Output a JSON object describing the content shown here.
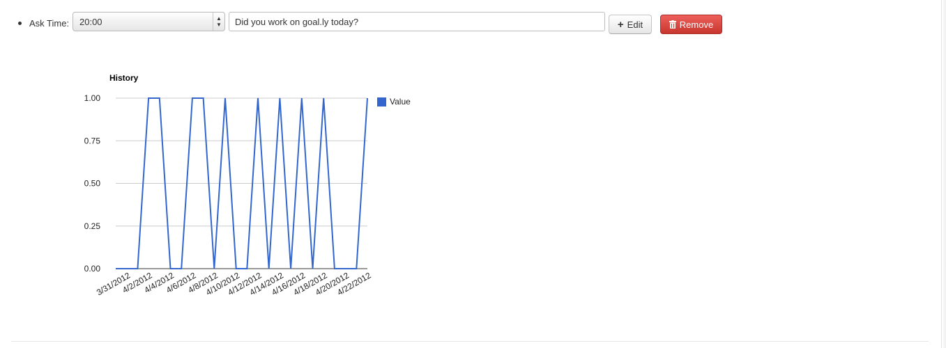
{
  "question_row": {
    "label": "Ask Time:",
    "ask_time": "20:00",
    "question_text": "Did you work on goal.ly today?",
    "edit_label": "Edit",
    "remove_label": "Remove"
  },
  "colors": {
    "series": "#3366cc",
    "remove_button": "#d9534f",
    "grid": "#cccccc"
  },
  "chart_data": {
    "type": "line",
    "title": "History",
    "legend": {
      "position": "right",
      "entries": [
        "Value"
      ]
    },
    "ylim": [
      0,
      1
    ],
    "y_ticks": [
      "0.00",
      "0.25",
      "0.50",
      "0.75",
      "1.00"
    ],
    "x_tick_labels": [
      "3/31/2012",
      "4/2/2012",
      "4/4/2012",
      "4/6/2012",
      "4/8/2012",
      "4/10/2012",
      "4/12/2012",
      "4/14/2012",
      "4/16/2012",
      "4/18/2012",
      "4/20/2012",
      "4/22/2012"
    ],
    "grid": true,
    "series": [
      {
        "name": "Value",
        "x": [
          "3/30/2012",
          "3/31/2012",
          "4/1/2012",
          "4/2/2012",
          "4/3/2012",
          "4/4/2012",
          "4/5/2012",
          "4/6/2012",
          "4/7/2012",
          "4/8/2012",
          "4/9/2012",
          "4/10/2012",
          "4/11/2012",
          "4/12/2012",
          "4/13/2012",
          "4/14/2012",
          "4/15/2012",
          "4/16/2012",
          "4/17/2012",
          "4/18/2012",
          "4/19/2012",
          "4/20/2012",
          "4/21/2012",
          "4/22/2012"
        ],
        "values": [
          0,
          0,
          0,
          1,
          1,
          0,
          0,
          1,
          1,
          0,
          1,
          0,
          0,
          1,
          0,
          1,
          0,
          1,
          0,
          1,
          0,
          0,
          0,
          1
        ]
      }
    ]
  }
}
